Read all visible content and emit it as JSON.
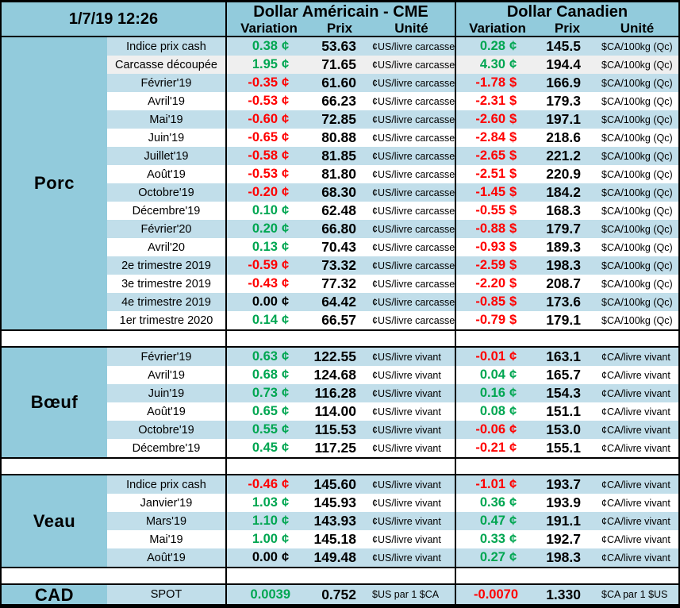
{
  "header": {
    "timestamp": "1/7/19 12:26",
    "us_title": "Dollar Américain - CME",
    "ca_title": "Dollar Canadien",
    "columns": {
      "variation": "Variation",
      "prix": "Prix",
      "unite": "Unité"
    }
  },
  "colors": {
    "positive_green": "#00A651",
    "negative_red": "#FF0000",
    "neutral_black": "#000000",
    "header_blue": "#92CBDC",
    "row_blue": "#C1DEEA",
    "row_gray": "#EFEFEF"
  },
  "sections": [
    {
      "name": "Porc",
      "us_unit": "¢US/livre carcasse",
      "ca_unit": "$CA/100kg (Qc)",
      "rows": [
        {
          "label": "Indice prix cash",
          "shade": "blue",
          "us": {
            "variation": "0.38",
            "symbol": "¢",
            "prix": "53.63"
          },
          "ca": {
            "variation": "0.28",
            "symbol": "¢",
            "prix": "145.5"
          }
        },
        {
          "label": "Carcasse découpée",
          "shade": "gray",
          "us": {
            "variation": "1.95",
            "symbol": "¢",
            "prix": "71.65"
          },
          "ca": {
            "variation": "4.30",
            "symbol": "¢",
            "prix": "194.4"
          }
        },
        {
          "label": "Février'19",
          "shade": "blue",
          "us": {
            "variation": "-0.35",
            "symbol": "¢",
            "prix": "61.60"
          },
          "ca": {
            "variation": "-1.78",
            "symbol": "$",
            "prix": "166.9"
          }
        },
        {
          "label": "Avril'19",
          "shade": "white",
          "us": {
            "variation": "-0.53",
            "symbol": "¢",
            "prix": "66.23"
          },
          "ca": {
            "variation": "-2.31",
            "symbol": "$",
            "prix": "179.3"
          }
        },
        {
          "label": "Mai'19",
          "shade": "blue",
          "us": {
            "variation": "-0.60",
            "symbol": "¢",
            "prix": "72.85"
          },
          "ca": {
            "variation": "-2.60",
            "symbol": "$",
            "prix": "197.1"
          }
        },
        {
          "label": "Juin'19",
          "shade": "white",
          "us": {
            "variation": "-0.65",
            "symbol": "¢",
            "prix": "80.88"
          },
          "ca": {
            "variation": "-2.84",
            "symbol": "$",
            "prix": "218.6"
          }
        },
        {
          "label": "Juillet'19",
          "shade": "blue",
          "us": {
            "variation": "-0.58",
            "symbol": "¢",
            "prix": "81.85"
          },
          "ca": {
            "variation": "-2.65",
            "symbol": "$",
            "prix": "221.2"
          }
        },
        {
          "label": "Août'19",
          "shade": "white",
          "us": {
            "variation": "-0.53",
            "symbol": "¢",
            "prix": "81.80"
          },
          "ca": {
            "variation": "-2.51",
            "symbol": "$",
            "prix": "220.9"
          }
        },
        {
          "label": "Octobre'19",
          "shade": "blue",
          "us": {
            "variation": "-0.20",
            "symbol": "¢",
            "prix": "68.30"
          },
          "ca": {
            "variation": "-1.45",
            "symbol": "$",
            "prix": "184.2"
          }
        },
        {
          "label": "Décembre'19",
          "shade": "white",
          "us": {
            "variation": "0.10",
            "symbol": "¢",
            "prix": "62.48"
          },
          "ca": {
            "variation": "-0.55",
            "symbol": "$",
            "prix": "168.3"
          }
        },
        {
          "label": "Février'20",
          "shade": "blue",
          "us": {
            "variation": "0.20",
            "symbol": "¢",
            "prix": "66.80"
          },
          "ca": {
            "variation": "-0.88",
            "symbol": "$",
            "prix": "179.7"
          }
        },
        {
          "label": "Avril'20",
          "shade": "white",
          "us": {
            "variation": "0.13",
            "symbol": "¢",
            "prix": "70.43"
          },
          "ca": {
            "variation": "-0.93",
            "symbol": "$",
            "prix": "189.3"
          }
        },
        {
          "label": "2e trimestre 2019",
          "shade": "blue",
          "us": {
            "variation": "-0.59",
            "symbol": "¢",
            "prix": "73.32"
          },
          "ca": {
            "variation": "-2.59",
            "symbol": "$",
            "prix": "198.3"
          }
        },
        {
          "label": "3e trimestre 2019",
          "shade": "white",
          "us": {
            "variation": "-0.43",
            "symbol": "¢",
            "prix": "77.32"
          },
          "ca": {
            "variation": "-2.20",
            "symbol": "$",
            "prix": "208.7"
          }
        },
        {
          "label": "4e trimestre 2019",
          "shade": "blue",
          "us": {
            "variation": "0.00",
            "symbol": "¢",
            "prix": "64.42"
          },
          "ca": {
            "variation": "-0.85",
            "symbol": "$",
            "prix": "173.6"
          }
        },
        {
          "label": "1er trimestre 2020",
          "shade": "white",
          "us": {
            "variation": "0.14",
            "symbol": "¢",
            "prix": "66.57"
          },
          "ca": {
            "variation": "-0.79",
            "symbol": "$",
            "prix": "179.1"
          }
        }
      ]
    },
    {
      "name": "Bœuf",
      "us_unit": "¢US/livre vivant",
      "ca_unit": "¢CA/livre vivant",
      "rows": [
        {
          "label": "Février'19",
          "shade": "blue",
          "us": {
            "variation": "0.63",
            "symbol": "¢",
            "prix": "122.55"
          },
          "ca": {
            "variation": "-0.01",
            "symbol": "¢",
            "prix": "163.1"
          }
        },
        {
          "label": "Avril'19",
          "shade": "white",
          "us": {
            "variation": "0.68",
            "symbol": "¢",
            "prix": "124.68"
          },
          "ca": {
            "variation": "0.04",
            "symbol": "¢",
            "prix": "165.7"
          }
        },
        {
          "label": "Juin'19",
          "shade": "blue",
          "us": {
            "variation": "0.73",
            "symbol": "¢",
            "prix": "116.28"
          },
          "ca": {
            "variation": "0.16",
            "symbol": "¢",
            "prix": "154.3"
          }
        },
        {
          "label": "Août'19",
          "shade": "white",
          "us": {
            "variation": "0.65",
            "symbol": "¢",
            "prix": "114.00"
          },
          "ca": {
            "variation": "0.08",
            "symbol": "¢",
            "prix": "151.1"
          }
        },
        {
          "label": "Octobre'19",
          "shade": "blue",
          "us": {
            "variation": "0.55",
            "symbol": "¢",
            "prix": "115.53"
          },
          "ca": {
            "variation": "-0.06",
            "symbol": "¢",
            "prix": "153.0"
          }
        },
        {
          "label": "Décembre'19",
          "shade": "white",
          "us": {
            "variation": "0.45",
            "symbol": "¢",
            "prix": "117.25"
          },
          "ca": {
            "variation": "-0.21",
            "symbol": "¢",
            "prix": "155.1"
          }
        }
      ]
    },
    {
      "name": "Veau",
      "us_unit": "¢US/livre vivant",
      "ca_unit": "¢CA/livre vivant",
      "rows": [
        {
          "label": "Indice prix cash",
          "shade": "blue",
          "us": {
            "variation": "-0.46",
            "symbol": "¢",
            "prix": "145.60"
          },
          "ca": {
            "variation": "-1.01",
            "symbol": "¢",
            "prix": "193.7"
          }
        },
        {
          "label": "Janvier'19",
          "shade": "white",
          "us": {
            "variation": "1.03",
            "symbol": "¢",
            "prix": "145.93"
          },
          "ca": {
            "variation": "0.36",
            "symbol": "¢",
            "prix": "193.9"
          }
        },
        {
          "label": "Mars'19",
          "shade": "blue",
          "us": {
            "variation": "1.10",
            "symbol": "¢",
            "prix": "143.93"
          },
          "ca": {
            "variation": "0.47",
            "symbol": "¢",
            "prix": "191.1"
          }
        },
        {
          "label": "Mai'19",
          "shade": "white",
          "us": {
            "variation": "1.00",
            "symbol": "¢",
            "prix": "145.18"
          },
          "ca": {
            "variation": "0.33",
            "symbol": "¢",
            "prix": "192.7"
          }
        },
        {
          "label": "Août'19",
          "shade": "blue",
          "us": {
            "variation": "0.00",
            "symbol": "¢",
            "prix": "149.48"
          },
          "ca": {
            "variation": "0.27",
            "symbol": "¢",
            "prix": "198.3"
          }
        }
      ]
    },
    {
      "name": "CAD",
      "us_unit": "$US par 1 $CA",
      "ca_unit": "$CA par 1 $US",
      "rows": [
        {
          "label": "SPOT",
          "shade": "blue",
          "us": {
            "variation": "0.0039",
            "symbol": "",
            "prix": "0.752"
          },
          "ca": {
            "variation": "-0.0070",
            "symbol": "",
            "prix": "1.330"
          }
        }
      ]
    }
  ]
}
